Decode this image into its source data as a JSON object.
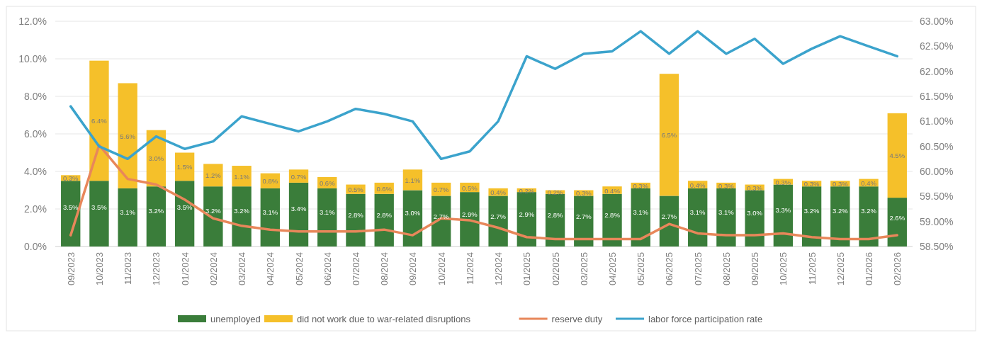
{
  "chart_data": {
    "type": "bar",
    "stacked": true,
    "categories": [
      "09/2023",
      "10/2023",
      "11/2023",
      "12/2023",
      "01/2024",
      "02/2024",
      "03/2024",
      "04/2024",
      "05/2024",
      "06/2024",
      "07/2024",
      "08/2024",
      "09/2024",
      "10/2024",
      "11/2024",
      "12/2024",
      "01/2025",
      "02/2025",
      "03/2025",
      "04/2025",
      "05/2025",
      "06/2025",
      "07/2025",
      "08/2025",
      "09/2025",
      "10/2025",
      "11/2025",
      "12/2025",
      "01/2026",
      "02/2026"
    ],
    "series": [
      {
        "name": "unemployed",
        "color": "#3a7d3a",
        "values": [
          3.5,
          3.5,
          3.1,
          3.2,
          3.5,
          3.2,
          3.2,
          3.1,
          3.4,
          3.1,
          2.8,
          2.8,
          3.0,
          2.7,
          2.9,
          2.7,
          2.9,
          2.8,
          2.7,
          2.8,
          3.1,
          2.7,
          3.1,
          3.1,
          3.0,
          3.3,
          3.2,
          3.2,
          3.2,
          2.6
        ],
        "value_labels": [
          "3.5%",
          "3.5%",
          "3.1%",
          "3.2%",
          "3.5%",
          "3.2%",
          "3.2%",
          "3.1%",
          "3.4%",
          "3.1%",
          "2.8%",
          "2.8%",
          "3.0%",
          "2.7%",
          "2.9%",
          "2.7%",
          "2.9%",
          "2.8%",
          "2.7%",
          "2.8%",
          "3.1%",
          "2.7%",
          "3.1%",
          "3.1%",
          "3.0%",
          "3.3%",
          "3.2%",
          "3.2%",
          "3.2%",
          "2.6%"
        ]
      },
      {
        "name": "did not work due to war-related disruptions",
        "color": "#f5c02a",
        "values": [
          0.3,
          6.4,
          5.6,
          3.0,
          1.5,
          1.2,
          1.1,
          0.8,
          0.7,
          0.6,
          0.5,
          0.6,
          1.1,
          0.7,
          0.5,
          0.4,
          0.2,
          0.2,
          0.3,
          0.4,
          0.3,
          6.5,
          0.4,
          0.3,
          0.3,
          0.3,
          0.3,
          0.3,
          0.4,
          4.5
        ],
        "value_labels": [
          "0.3%",
          "6.4%",
          "5.6%",
          "3.0%",
          "1.5%",
          "1.2%",
          "1.1%",
          "0.8%",
          "0.7%",
          "0.6%",
          "0.5%",
          "0.6%",
          "1.1%",
          "0.7%",
          "0.5%",
          "0.4%",
          "0.2%",
          "0.2%",
          "0.3%",
          "0.4%",
          "0.3%",
          "6.5%",
          "0.4%",
          "0.3%",
          "0.3%",
          "0.3%",
          "0.3%",
          "0.3%",
          "0.4%",
          "4.5%"
        ]
      },
      {
        "name": "reserve duty",
        "type": "line",
        "color": "#e8875a",
        "values": [
          0.6,
          5.4,
          3.6,
          3.3,
          2.5,
          1.5,
          1.1,
          0.9,
          0.8,
          0.8,
          0.8,
          0.9,
          0.6,
          1.5,
          1.4,
          1.0,
          0.5,
          0.4,
          0.4,
          0.4,
          0.4,
          1.2,
          0.7,
          0.6,
          0.6,
          0.7,
          0.5,
          0.4,
          0.4,
          0.6
        ]
      },
      {
        "name": "labor force participation rate",
        "type": "line",
        "axis": "y2",
        "color": "#3ba3cc",
        "values": [
          61.3,
          60.5,
          60.25,
          60.7,
          60.45,
          60.6,
          61.1,
          60.95,
          60.8,
          61.0,
          61.25,
          61.15,
          61.0,
          60.25,
          60.4,
          61.0,
          62.3,
          62.05,
          62.35,
          62.4,
          62.8,
          62.35,
          62.8,
          62.35,
          62.65,
          62.15,
          62.45,
          62.7,
          62.5,
          62.3
        ]
      }
    ],
    "ylim": [
      0,
      12
    ],
    "yticks": [
      {
        "value": 0,
        "label": "0.0%"
      },
      {
        "value": 2,
        "label": "2.0%"
      },
      {
        "value": 4,
        "label": "4.0%"
      },
      {
        "value": 6,
        "label": "6.0%"
      },
      {
        "value": 8,
        "label": "8.0%"
      },
      {
        "value": 10,
        "label": "10.0%"
      },
      {
        "value": 12,
        "label": "12.0%"
      }
    ],
    "y2lim": [
      58.5,
      63
    ],
    "y2ticks": [
      {
        "value": 58.5,
        "label": "58.50%"
      },
      {
        "value": 59,
        "label": "59.00%"
      },
      {
        "value": 59.5,
        "label": "59.50%"
      },
      {
        "value": 60,
        "label": "60.00%"
      },
      {
        "value": 60.5,
        "label": "60.50%"
      },
      {
        "value": 61,
        "label": "61.00%"
      },
      {
        "value": 61.5,
        "label": "61.50%"
      },
      {
        "value": 62,
        "label": "62.00%"
      },
      {
        "value": 62.5,
        "label": "62.50%"
      },
      {
        "value": 63,
        "label": "63.00%"
      }
    ],
    "grid": "y",
    "legend": "bottom"
  }
}
